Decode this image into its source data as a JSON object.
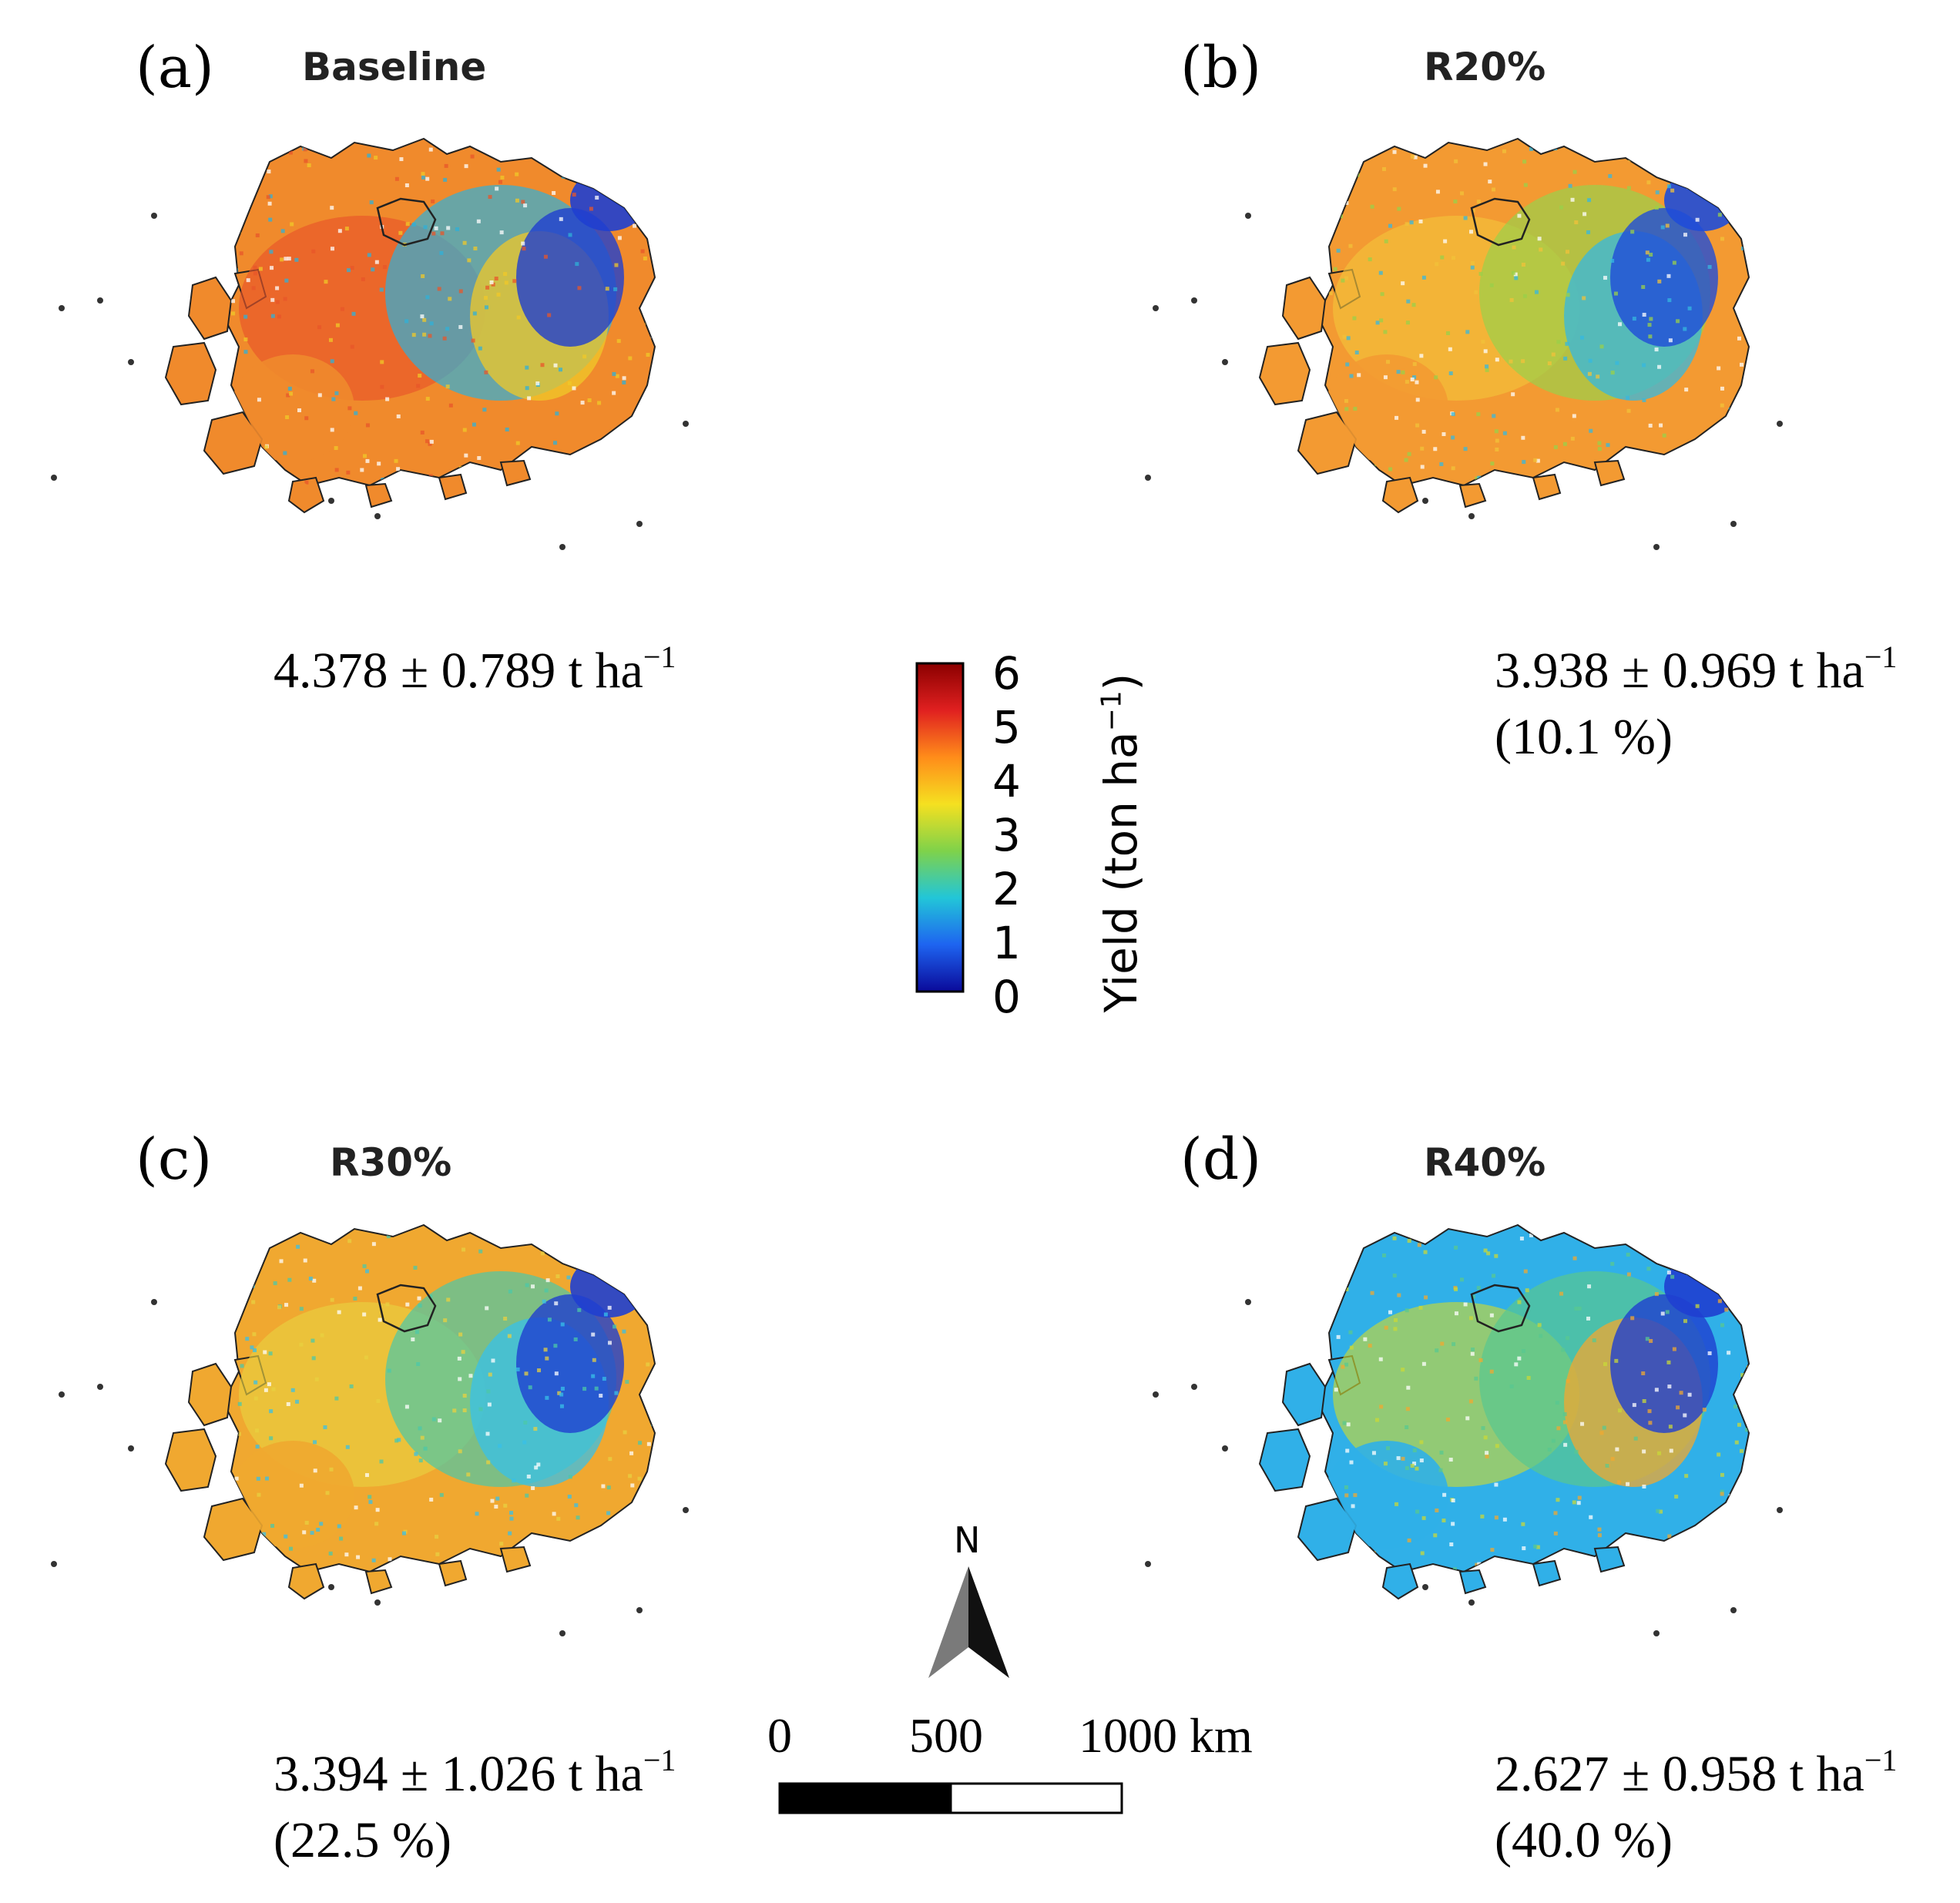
{
  "panels": [
    {
      "letter": "(a)",
      "title": "Baseline",
      "mean_sd": "4.378 ± 0.789 t ha",
      "unit_sup": "−1",
      "change": "",
      "colors": {
        "base": "#f08a2c",
        "accent": "#e8552a",
        "patch1": "#2fb0d8",
        "patch2": "#1f3fd0",
        "patch3": "#f0c828"
      }
    },
    {
      "letter": "(b)",
      "title": "R20%",
      "mean_sd": "3.938 ± 0.969 t ha",
      "unit_sup": "−1",
      "change": "(10.1 %)",
      "colors": {
        "base": "#f39a32",
        "accent": "#f2c23a",
        "patch1": "#9ad04a",
        "patch2": "#1f4cd8",
        "patch3": "#36b8e0"
      }
    },
    {
      "letter": "(c)",
      "title": "R30%",
      "mean_sd": "3.394 ± 1.026 t ha",
      "unit_sup": "−1",
      "change": "(22.5 %)",
      "colors": {
        "base": "#f0a830",
        "accent": "#e8d040",
        "patch1": "#4cc8a8",
        "patch2": "#1f3fd0",
        "patch3": "#38c0e8"
      }
    },
    {
      "letter": "(d)",
      "title": "R40%",
      "mean_sd": "2.627 ± 0.958 t ha",
      "unit_sup": "−1",
      "change": "(40.0 %)",
      "colors": {
        "base": "#30b0e8",
        "accent": "#c8d838",
        "patch1": "#58c890",
        "patch2": "#1f3fd0",
        "patch3": "#f0a830"
      }
    }
  ],
  "colorbar": {
    "ticks": [
      "6",
      "5",
      "4",
      "3",
      "2",
      "1",
      "0"
    ],
    "label": "Yield (ton ha",
    "label_sup": "−1",
    "label_close": ")",
    "stops": [
      "#8b0000",
      "#e02020",
      "#ff8c1a",
      "#f5e020",
      "#7fd24a",
      "#22c6d8",
      "#1e64f0",
      "#0a0a9a"
    ]
  },
  "scalebar": {
    "labels": [
      "0",
      "500",
      "1000 km"
    ]
  },
  "north_arrow": {
    "label": "N"
  }
}
